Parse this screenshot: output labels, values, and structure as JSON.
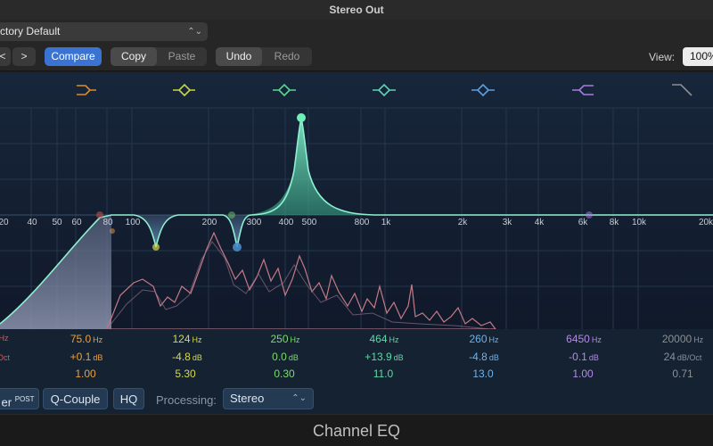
{
  "window": {
    "title": "Stereo Out",
    "plugin_name": "Channel EQ"
  },
  "preset": {
    "value": "ctory Default"
  },
  "toolbar": {
    "prev_label": "<",
    "next_label": ">",
    "compare_label": "Compare",
    "copy_label": "Copy",
    "paste_label": "Paste",
    "undo_label": "Undo",
    "redo_label": "Redo",
    "view_label": "View:",
    "view_value": "100%"
  },
  "graph": {
    "freq_labels": [
      "20",
      "40",
      "50",
      "60",
      "80",
      "100",
      "200",
      "300",
      "400",
      "500",
      "800",
      "1k",
      "2k",
      "3k",
      "4k",
      "6k",
      "8k",
      "10k",
      "20k"
    ],
    "band_colors": [
      "#e08a2e",
      "#c8d44a",
      "#58d68d",
      "#5fd3b0",
      "#5b9fe0",
      "#a87be0",
      "#8a8f96"
    ]
  },
  "bands": [
    {
      "freq": "Hz",
      "gain": "Oct",
      "q": "",
      "color": "#e0564e"
    },
    {
      "freq": "75.0",
      "freq_unit": "Hz",
      "gain": "+0.1",
      "gain_unit": "dB",
      "q": "1.00",
      "color": "#e8a040"
    },
    {
      "freq": "124",
      "freq_unit": "Hz",
      "gain": "-4.8",
      "gain_unit": "dB",
      "q": "5.30",
      "color": "#d4d84e"
    },
    {
      "freq": "250",
      "freq_unit": "Hz",
      "gain": "0.0",
      "gain_unit": "dB",
      "q": "0.30",
      "color": "#7bdc6a"
    },
    {
      "freq": "464",
      "freq_unit": "Hz",
      "gain": "+13.9",
      "gain_unit": "dB",
      "q": "11.0",
      "color": "#5fd8a8"
    },
    {
      "freq": "260",
      "freq_unit": "Hz",
      "gain": "-4.8",
      "gain_unit": "dB",
      "q": "13.0",
      "color": "#6fb2ea"
    },
    {
      "freq": "6450",
      "freq_unit": "Hz",
      "gain": "-0.1",
      "gain_unit": "dB",
      "q": "1.00",
      "color": "#b58ae8"
    },
    {
      "freq": "20000",
      "freq_unit": "Hz",
      "gain": "24",
      "gain_unit": "dB/Oct",
      "q": "0.71",
      "color": "#8a8f96"
    }
  ],
  "bottom": {
    "analyzer_label": "er",
    "analyzer_sup": "POST",
    "qcouple_label": "Q-Couple",
    "hq_label": "HQ",
    "processing_label": "Processing:",
    "processing_value": "Stereo"
  }
}
